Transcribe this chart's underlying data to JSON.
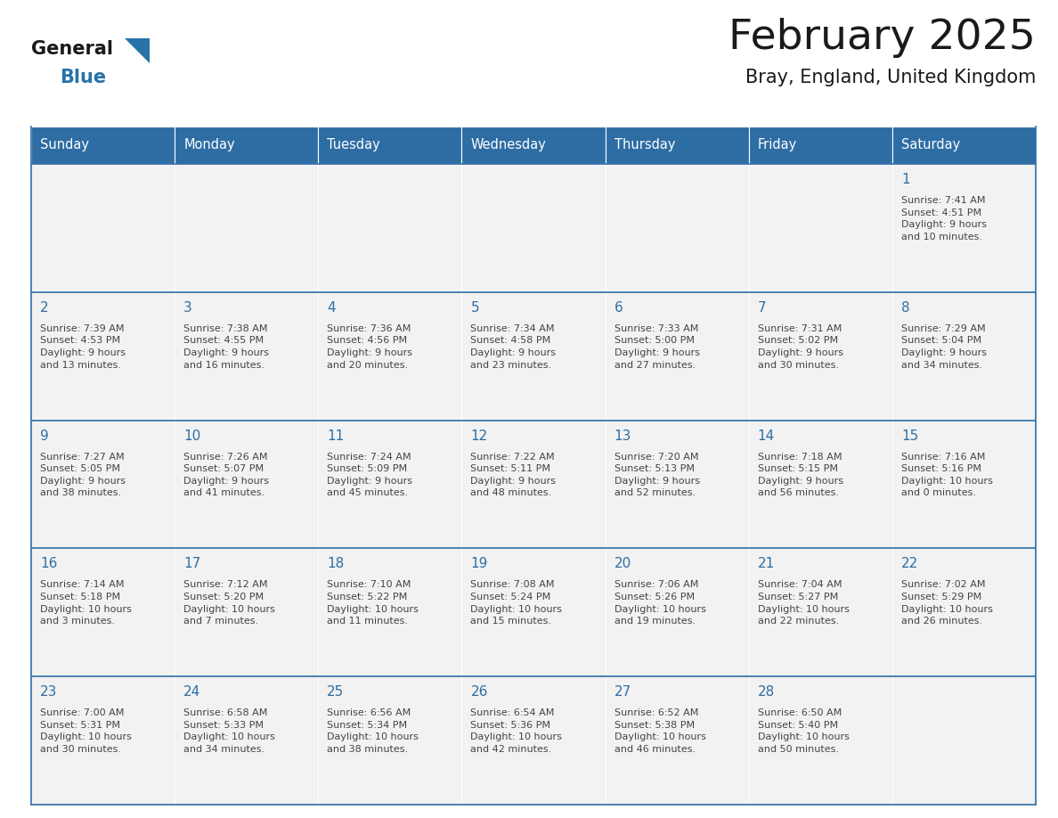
{
  "title": "February 2025",
  "subtitle": "Bray, England, United Kingdom",
  "days_of_week": [
    "Sunday",
    "Monday",
    "Tuesday",
    "Wednesday",
    "Thursday",
    "Friday",
    "Saturday"
  ],
  "header_bg_color": "#2E6DA4",
  "header_text_color": "#FFFFFF",
  "cell_bg_color": "#F2F2F2",
  "border_color": "#2E6DA4",
  "day_number_color": "#2E6DA4",
  "cell_text_color": "#444444",
  "title_color": "#1A1A1A",
  "subtitle_color": "#1A1A1A",
  "logo_general_color": "#1A1A1A",
  "logo_blue_color": "#2873A8",
  "calendar_data": [
    [
      "",
      "",
      "",
      "",
      "",
      "",
      "1\nSunrise: 7:41 AM\nSunset: 4:51 PM\nDaylight: 9 hours\nand 10 minutes."
    ],
    [
      "2\nSunrise: 7:39 AM\nSunset: 4:53 PM\nDaylight: 9 hours\nand 13 minutes.",
      "3\nSunrise: 7:38 AM\nSunset: 4:55 PM\nDaylight: 9 hours\nand 16 minutes.",
      "4\nSunrise: 7:36 AM\nSunset: 4:56 PM\nDaylight: 9 hours\nand 20 minutes.",
      "5\nSunrise: 7:34 AM\nSunset: 4:58 PM\nDaylight: 9 hours\nand 23 minutes.",
      "6\nSunrise: 7:33 AM\nSunset: 5:00 PM\nDaylight: 9 hours\nand 27 minutes.",
      "7\nSunrise: 7:31 AM\nSunset: 5:02 PM\nDaylight: 9 hours\nand 30 minutes.",
      "8\nSunrise: 7:29 AM\nSunset: 5:04 PM\nDaylight: 9 hours\nand 34 minutes."
    ],
    [
      "9\nSunrise: 7:27 AM\nSunset: 5:05 PM\nDaylight: 9 hours\nand 38 minutes.",
      "10\nSunrise: 7:26 AM\nSunset: 5:07 PM\nDaylight: 9 hours\nand 41 minutes.",
      "11\nSunrise: 7:24 AM\nSunset: 5:09 PM\nDaylight: 9 hours\nand 45 minutes.",
      "12\nSunrise: 7:22 AM\nSunset: 5:11 PM\nDaylight: 9 hours\nand 48 minutes.",
      "13\nSunrise: 7:20 AM\nSunset: 5:13 PM\nDaylight: 9 hours\nand 52 minutes.",
      "14\nSunrise: 7:18 AM\nSunset: 5:15 PM\nDaylight: 9 hours\nand 56 minutes.",
      "15\nSunrise: 7:16 AM\nSunset: 5:16 PM\nDaylight: 10 hours\nand 0 minutes."
    ],
    [
      "16\nSunrise: 7:14 AM\nSunset: 5:18 PM\nDaylight: 10 hours\nand 3 minutes.",
      "17\nSunrise: 7:12 AM\nSunset: 5:20 PM\nDaylight: 10 hours\nand 7 minutes.",
      "18\nSunrise: 7:10 AM\nSunset: 5:22 PM\nDaylight: 10 hours\nand 11 minutes.",
      "19\nSunrise: 7:08 AM\nSunset: 5:24 PM\nDaylight: 10 hours\nand 15 minutes.",
      "20\nSunrise: 7:06 AM\nSunset: 5:26 PM\nDaylight: 10 hours\nand 19 minutes.",
      "21\nSunrise: 7:04 AM\nSunset: 5:27 PM\nDaylight: 10 hours\nand 22 minutes.",
      "22\nSunrise: 7:02 AM\nSunset: 5:29 PM\nDaylight: 10 hours\nand 26 minutes."
    ],
    [
      "23\nSunrise: 7:00 AM\nSunset: 5:31 PM\nDaylight: 10 hours\nand 30 minutes.",
      "24\nSunrise: 6:58 AM\nSunset: 5:33 PM\nDaylight: 10 hours\nand 34 minutes.",
      "25\nSunrise: 6:56 AM\nSunset: 5:34 PM\nDaylight: 10 hours\nand 38 minutes.",
      "26\nSunrise: 6:54 AM\nSunset: 5:36 PM\nDaylight: 10 hours\nand 42 minutes.",
      "27\nSunrise: 6:52 AM\nSunset: 5:38 PM\nDaylight: 10 hours\nand 46 minutes.",
      "28\nSunrise: 6:50 AM\nSunset: 5:40 PM\nDaylight: 10 hours\nand 50 minutes.",
      ""
    ]
  ],
  "n_rows": 5,
  "n_cols": 7,
  "fig_width": 11.88,
  "fig_height": 9.18
}
